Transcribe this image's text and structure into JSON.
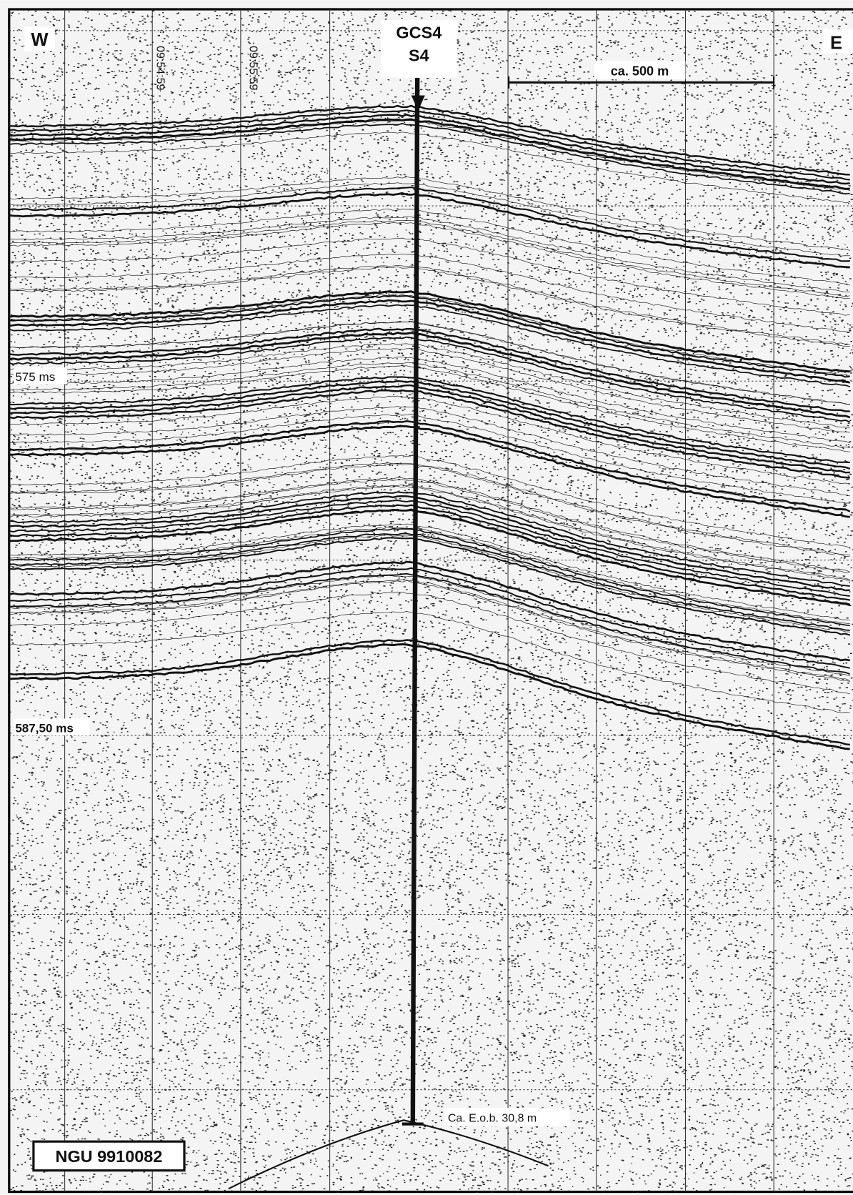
{
  "profile": {
    "west": "W",
    "east": "E",
    "site": "GCS4",
    "station": "S4",
    "scale": "ca. 500 m",
    "times": [
      "09:54:59",
      "09:55:59"
    ],
    "depths": [
      "575 ms",
      "587,50 ms"
    ],
    "bottom_note": "Ca. E.o.b. 30,8 m",
    "id": "NGU 9910082"
  }
}
